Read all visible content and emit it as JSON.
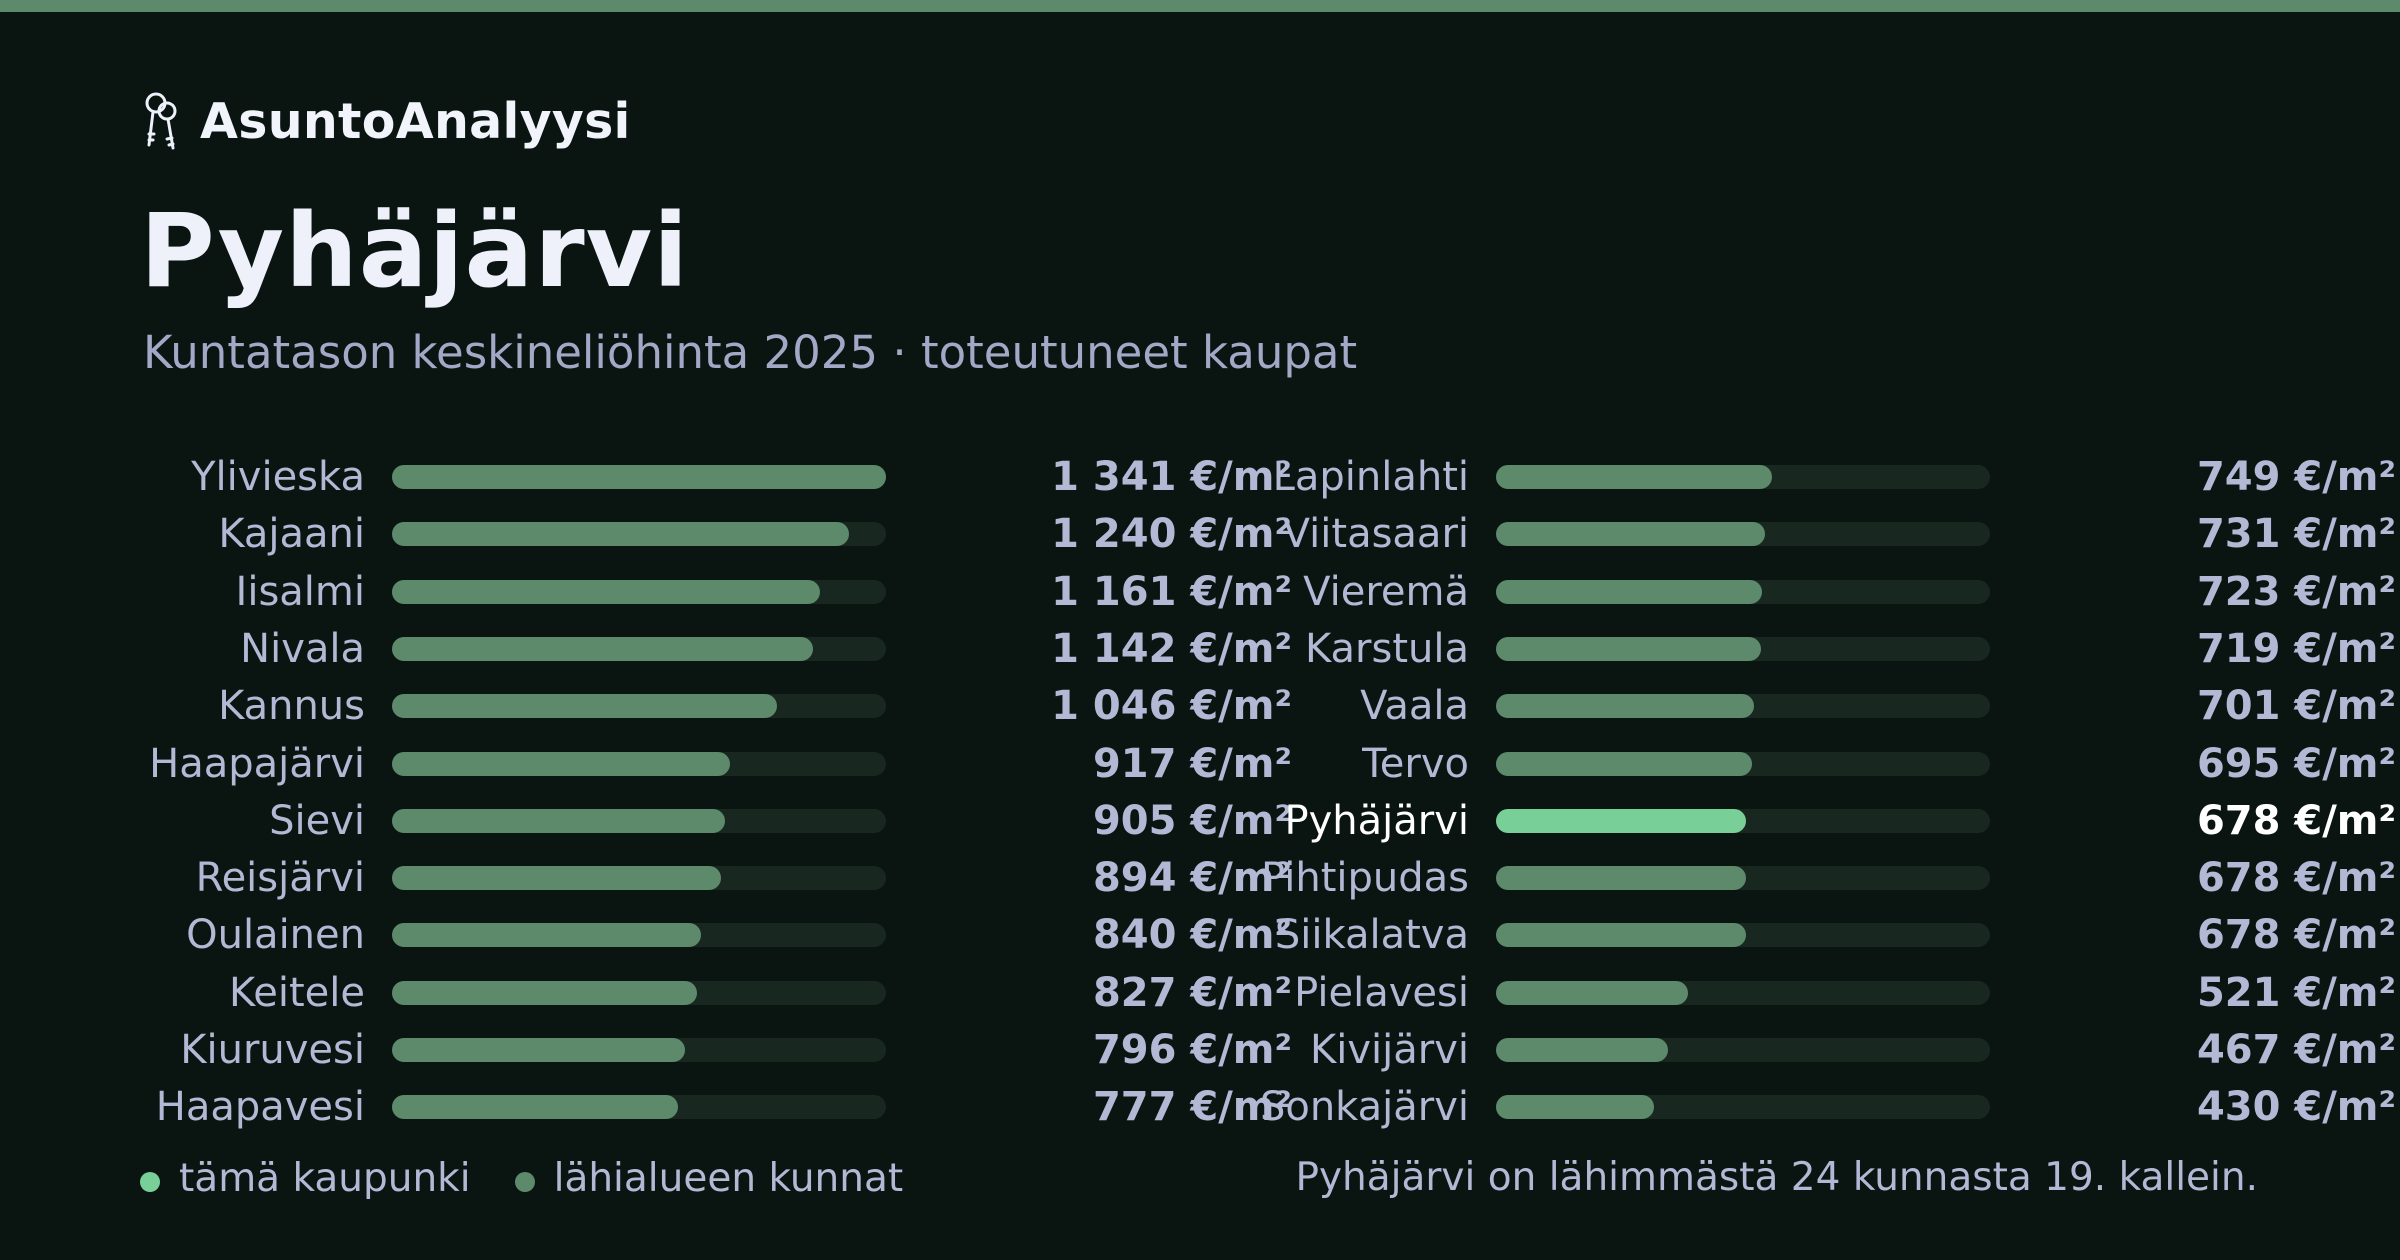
{
  "brand": {
    "name": "AsuntoAnalyysi",
    "icon": "keys-icon"
  },
  "header": {
    "title": "Pyhäjärvi",
    "subtitle": "Kuntatason keskineliöhinta 2025 · toteutuneet kaupat"
  },
  "colors": {
    "accent_bar": "#5e8a6c",
    "current_bar": "#79cf98",
    "neighbor_bar": "#5e8a6c",
    "track": "#18271f",
    "background": "#0a1512"
  },
  "chart_data": {
    "type": "bar",
    "orientation": "horizontal",
    "unit": "€/m²",
    "xlim": [
      0,
      1341
    ],
    "highlight": "Pyhäjärvi",
    "categories": [
      "Ylivieska",
      "Kajaani",
      "Iisalmi",
      "Nivala",
      "Kannus",
      "Haapajärvi",
      "Sievi",
      "Reisjärvi",
      "Oulainen",
      "Keitele",
      "Kiuruvesi",
      "Haapavesi",
      "Lapinlahti",
      "Viitasaari",
      "Vieremä",
      "Karstula",
      "Vaala",
      "Tervo",
      "Pyhäjärvi",
      "Pihtipudas",
      "Siikalatva",
      "Pielavesi",
      "Kivijärvi",
      "Sonkajärvi"
    ],
    "values": [
      1341,
      1240,
      1161,
      1142,
      1046,
      917,
      905,
      894,
      840,
      827,
      796,
      777,
      749,
      731,
      723,
      719,
      701,
      695,
      678,
      678,
      678,
      521,
      467,
      430
    ],
    "value_labels": [
      "1 341 €/m²",
      "1 240 €/m²",
      "1 161 €/m²",
      "1 142 €/m²",
      "1 046 €/m²",
      "917 €/m²",
      "905 €/m²",
      "894 €/m²",
      "840 €/m²",
      "827 €/m²",
      "796 €/m²",
      "777 €/m²",
      "749 €/m²",
      "731 €/m²",
      "723 €/m²",
      "719 €/m²",
      "701 €/m²",
      "695 €/m²",
      "678 €/m²",
      "678 €/m²",
      "678 €/m²",
      "521 €/m²",
      "467 €/m²",
      "430 €/m²"
    ]
  },
  "legend": {
    "current_label": "tämä kaupunki",
    "neighbors_label": "lähialueen kunnat"
  },
  "footer": {
    "note": "Pyhäjärvi on lähimmästä 24 kunnasta 19. kallein."
  }
}
